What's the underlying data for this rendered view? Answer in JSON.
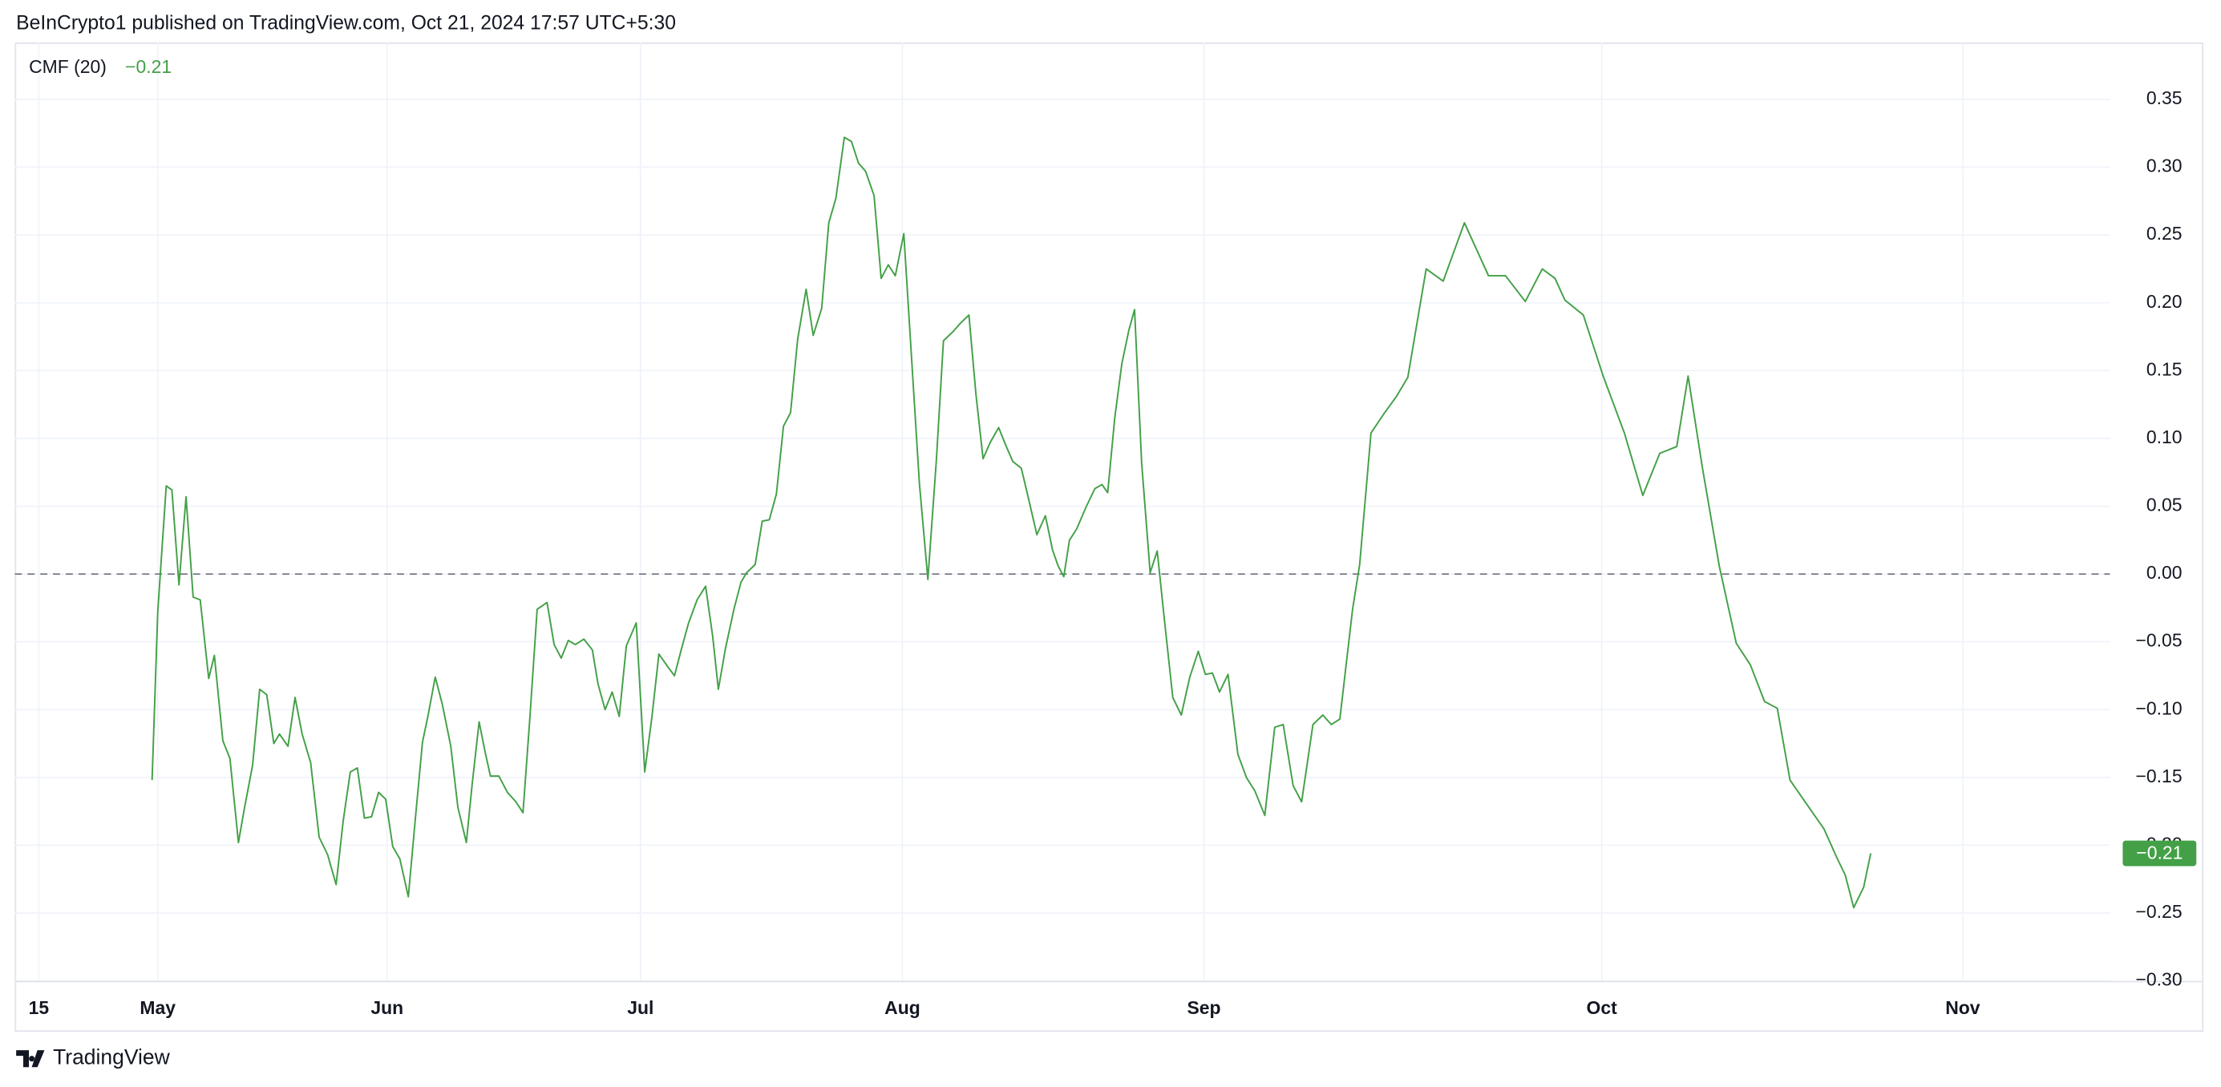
{
  "header": "BeInCrypto1 published on TradingView.com, Oct 21, 2024 17:57 UTC+5:30",
  "footer": "TradingView",
  "chart_data": {
    "type": "line",
    "indicator": "CMF (20)",
    "legend_value": "−0.21",
    "last_value_label": "−0.21",
    "reference_line": 0,
    "grid": true,
    "x": [
      97,
      101,
      107,
      111,
      116,
      121,
      126,
      131,
      137,
      141,
      147,
      152,
      158,
      162,
      168,
      173,
      178,
      183,
      187,
      193,
      198,
      203,
      209,
      215,
      221,
      227,
      232,
      237,
      242,
      247,
      252,
      257,
      262,
      267,
      272,
      278,
      283,
      288,
      292,
      297,
      302,
      308,
      313,
      319,
      323,
      328,
      332,
      336,
      342,
      348,
      354,
      359,
      364,
      369,
      376,
      381,
      386,
      391,
      396,
      402,
      408,
      412,
      417,
      422,
      427,
      432,
      439,
      445,
      450,
      455,
      461,
      466,
      471,
      476,
      482,
      488,
      493,
      497,
      502,
      508,
      513,
      517,
      523,
      528,
      533,
      538,
      543,
      548,
      553,
      559,
      564,
      570,
      575,
      580,
      586,
      591,
      596,
      601,
      607,
      612,
      617,
      622,
      628,
      639,
      645,
      651,
      656,
      663,
      668,
      674,
      679,
      684,
      689,
      695,
      700,
      705,
      711,
      716,
      722,
      728,
      733,
      737,
      741,
      745,
      750,
      757,
      763,
      768,
      772,
      777,
      782,
      787,
      791,
      796,
      802,
      807,
      812,
      818,
      824,
      830,
      836,
      841,
      846,
      851,
      857,
      864,
      870,
      876,
      883,
      890,
      896,
      903,
      909,
      917,
      924,
      930,
      936,
      945,
      950,
      958,
      967,
      976,
      984,
      997,
      1009,
      1024,
      1041,
      1053,
      1067,
      1079,
      1088,
      1095,
      1108,
      1122,
      1137,
      1150,
      1162,
      1174,
      1182,
      1192,
      1204,
      1216,
      1226,
      1236,
      1245,
      1254,
      1266,
      1278,
      1287,
      1293,
      1299,
      1306,
      1311
    ],
    "series": [
      {
        "name": "CMF (20)",
        "color": "#43a047",
        "values": [
          -0.152,
          -0.028,
          0.065,
          0.062,
          -0.008,
          0.057,
          -0.017,
          -0.019,
          -0.077,
          -0.06,
          -0.123,
          -0.136,
          -0.198,
          -0.174,
          -0.141,
          -0.085,
          -0.089,
          -0.125,
          -0.118,
          -0.127,
          -0.091,
          -0.118,
          -0.139,
          -0.194,
          -0.207,
          -0.229,
          -0.182,
          -0.146,
          -0.143,
          -0.18,
          -0.179,
          -0.161,
          -0.166,
          -0.201,
          -0.21,
          -0.238,
          -0.18,
          -0.124,
          -0.104,
          -0.076,
          -0.096,
          -0.127,
          -0.172,
          -0.198,
          -0.156,
          -0.109,
          -0.13,
          -0.149,
          -0.149,
          -0.161,
          -0.168,
          -0.176,
          -0.104,
          -0.026,
          -0.021,
          -0.052,
          -0.062,
          -0.049,
          -0.052,
          -0.048,
          -0.056,
          -0.081,
          -0.1,
          -0.087,
          -0.105,
          -0.053,
          -0.036,
          -0.146,
          -0.106,
          -0.059,
          -0.068,
          -0.075,
          -0.055,
          -0.036,
          -0.019,
          -0.009,
          -0.046,
          -0.085,
          -0.055,
          -0.026,
          -0.006,
          0.001,
          0.007,
          0.039,
          0.04,
          0.059,
          0.109,
          0.119,
          0.173,
          0.21,
          0.176,
          0.196,
          0.259,
          0.277,
          0.322,
          0.319,
          0.303,
          0.297,
          0.279,
          0.218,
          0.228,
          0.22,
          0.251,
          0.067,
          -0.004,
          0.084,
          0.172,
          0.179,
          0.185,
          0.191,
          0.132,
          0.085,
          0.097,
          0.108,
          0.095,
          0.083,
          0.078,
          0.056,
          0.029,
          0.043,
          0.018,
          0.006,
          -0.002,
          0.025,
          0.033,
          0.05,
          0.063,
          0.066,
          0.06,
          0.115,
          0.155,
          0.18,
          0.195,
          0.082,
          0.001,
          0.017,
          -0.033,
          -0.091,
          -0.104,
          -0.076,
          -0.057,
          -0.074,
          -0.073,
          -0.087,
          -0.074,
          -0.133,
          -0.15,
          -0.16,
          -0.178,
          -0.113,
          -0.111,
          -0.156,
          -0.168,
          -0.111,
          -0.104,
          -0.111,
          -0.107,
          -0.026,
          0.007,
          0.104,
          0.118,
          0.131,
          0.145,
          0.225,
          0.216,
          0.259,
          0.22,
          0.22,
          0.201,
          0.225,
          0.218,
          0.202,
          0.191,
          0.146,
          0.104,
          0.058,
          0.089,
          0.094,
          0.146,
          0.079,
          0.006,
          -0.051,
          -0.067,
          -0.094,
          -0.099,
          -0.152,
          -0.17,
          -0.188,
          -0.209,
          -0.222,
          -0.246,
          -0.231,
          -0.206
        ]
      }
    ],
    "xlim": [
      0,
      1480
    ],
    "xticks": [
      {
        "value": 17,
        "label": "15"
      },
      {
        "value": 101,
        "label": "May"
      },
      {
        "value": 263,
        "label": "Jun"
      },
      {
        "value": 442,
        "label": "Jul"
      },
      {
        "value": 627,
        "label": "Aug"
      },
      {
        "value": 840,
        "label": "Sep"
      },
      {
        "value": 1121,
        "label": "Oct"
      },
      {
        "value": 1376,
        "label": "Nov"
      }
    ],
    "ylim": [
      -0.3,
      0.392
    ],
    "yticks": [
      {
        "value": -0.3,
        "label": "−0.30"
      },
      {
        "value": -0.25,
        "label": "−0.25"
      },
      {
        "value": -0.2,
        "label": "−0.20"
      },
      {
        "value": -0.15,
        "label": "−0.15"
      },
      {
        "value": -0.1,
        "label": "−0.10"
      },
      {
        "value": -0.05,
        "label": "−0.05"
      },
      {
        "value": 0,
        "label": "0.00"
      },
      {
        "value": 0.05,
        "label": "0.05"
      },
      {
        "value": 0.1,
        "label": "0.10"
      },
      {
        "value": 0.15,
        "label": "0.15"
      },
      {
        "value": 0.2,
        "label": "0.20"
      },
      {
        "value": 0.25,
        "label": "0.25"
      },
      {
        "value": 0.3,
        "label": "0.30"
      },
      {
        "value": 0.35,
        "label": "0.35"
      }
    ]
  }
}
